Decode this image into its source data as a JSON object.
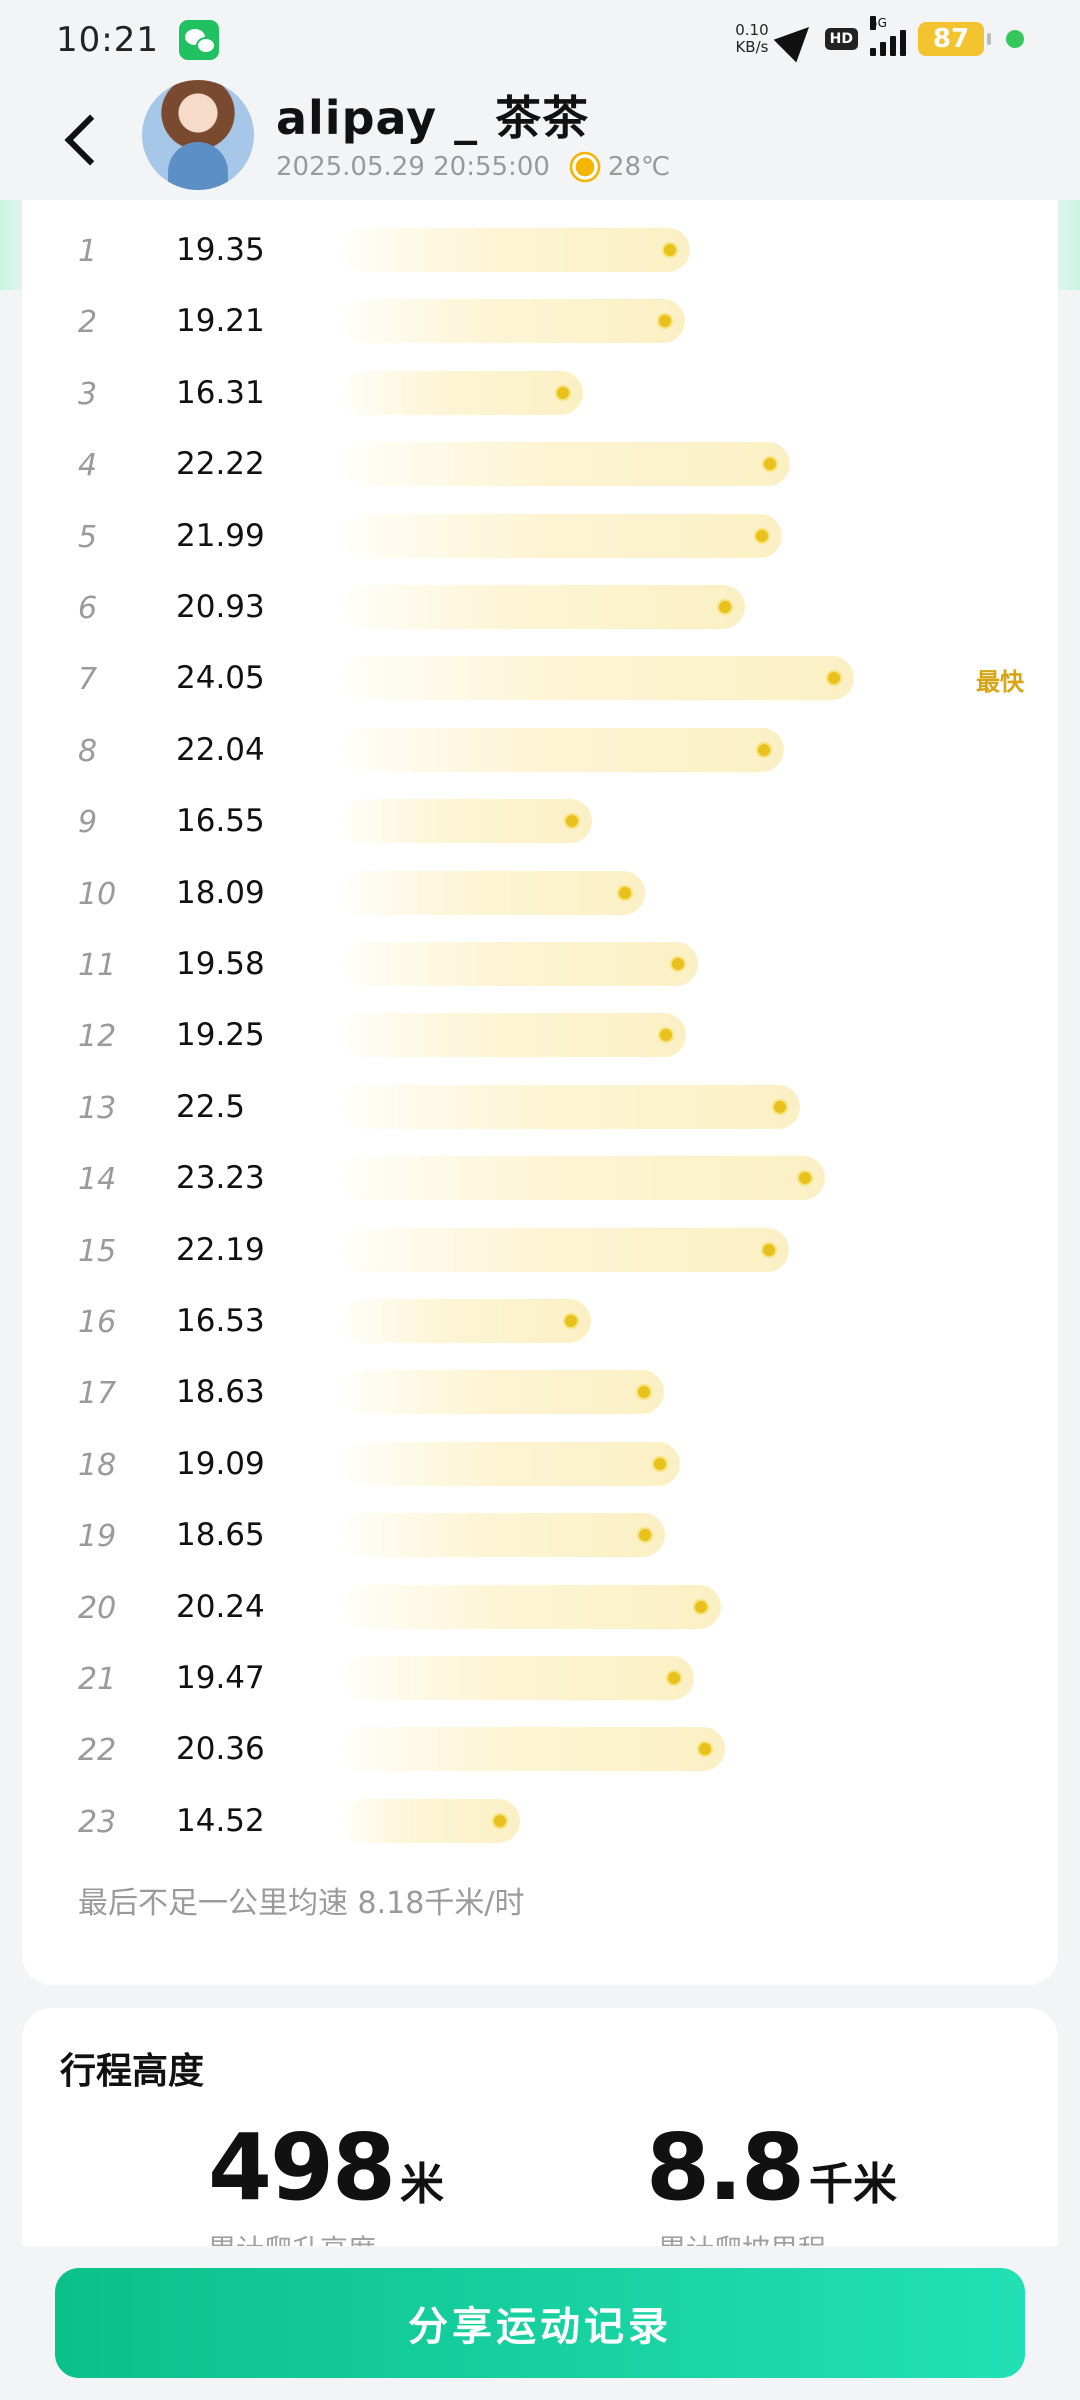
{
  "status_bar": {
    "time": "10:21",
    "net_speed_value": "0.10",
    "net_speed_unit": "KB/s",
    "hd": "HD",
    "signal_label": "5G",
    "battery": "87"
  },
  "header": {
    "title": "alipay _ 茶茶",
    "datetime": "2025.05.29 20:55:00",
    "temperature": "28℃"
  },
  "splits": [
    {
      "km": "1",
      "speed": "19.35",
      "value": 19.35
    },
    {
      "km": "2",
      "speed": "19.21",
      "value": 19.21
    },
    {
      "km": "3",
      "speed": "16.31",
      "value": 16.31
    },
    {
      "km": "4",
      "speed": "22.22",
      "value": 22.22
    },
    {
      "km": "5",
      "speed": "21.99",
      "value": 21.99
    },
    {
      "km": "6",
      "speed": "20.93",
      "value": 20.93
    },
    {
      "km": "7",
      "speed": "24.05",
      "value": 24.05,
      "tag": "最快"
    },
    {
      "km": "8",
      "speed": "22.04",
      "value": 22.04
    },
    {
      "km": "9",
      "speed": "16.55",
      "value": 16.55
    },
    {
      "km": "10",
      "speed": "18.09",
      "value": 18.09
    },
    {
      "km": "11",
      "speed": "19.58",
      "value": 19.58
    },
    {
      "km": "12",
      "speed": "19.25",
      "value": 19.25
    },
    {
      "km": "13",
      "speed": "22.5",
      "value": 22.5
    },
    {
      "km": "14",
      "speed": "23.23",
      "value": 23.23
    },
    {
      "km": "15",
      "speed": "22.19",
      "value": 22.19
    },
    {
      "km": "16",
      "speed": "16.53",
      "value": 16.53
    },
    {
      "km": "17",
      "speed": "18.63",
      "value": 18.63
    },
    {
      "km": "18",
      "speed": "19.09",
      "value": 19.09
    },
    {
      "km": "19",
      "speed": "18.65",
      "value": 18.65
    },
    {
      "km": "20",
      "speed": "20.24",
      "value": 20.24
    },
    {
      "km": "21",
      "speed": "19.47",
      "value": 19.47
    },
    {
      "km": "22",
      "speed": "20.36",
      "value": 20.36
    },
    {
      "km": "23",
      "speed": "14.52",
      "value": 14.52
    }
  ],
  "split_footnote": "最后不足一公里均速 8.18千米/时",
  "elevation": {
    "title": "行程高度",
    "stats": [
      {
        "value": "498",
        "unit": "米",
        "label": "累计爬升高度"
      },
      {
        "value": "8.8",
        "unit": "千米",
        "label": "累计爬坡里程"
      }
    ]
  },
  "share_label": "分享运动记录",
  "colors": {
    "accent": "#12c99a",
    "bar_dot": "#e8c11c",
    "fastest": "#d6a511"
  }
}
